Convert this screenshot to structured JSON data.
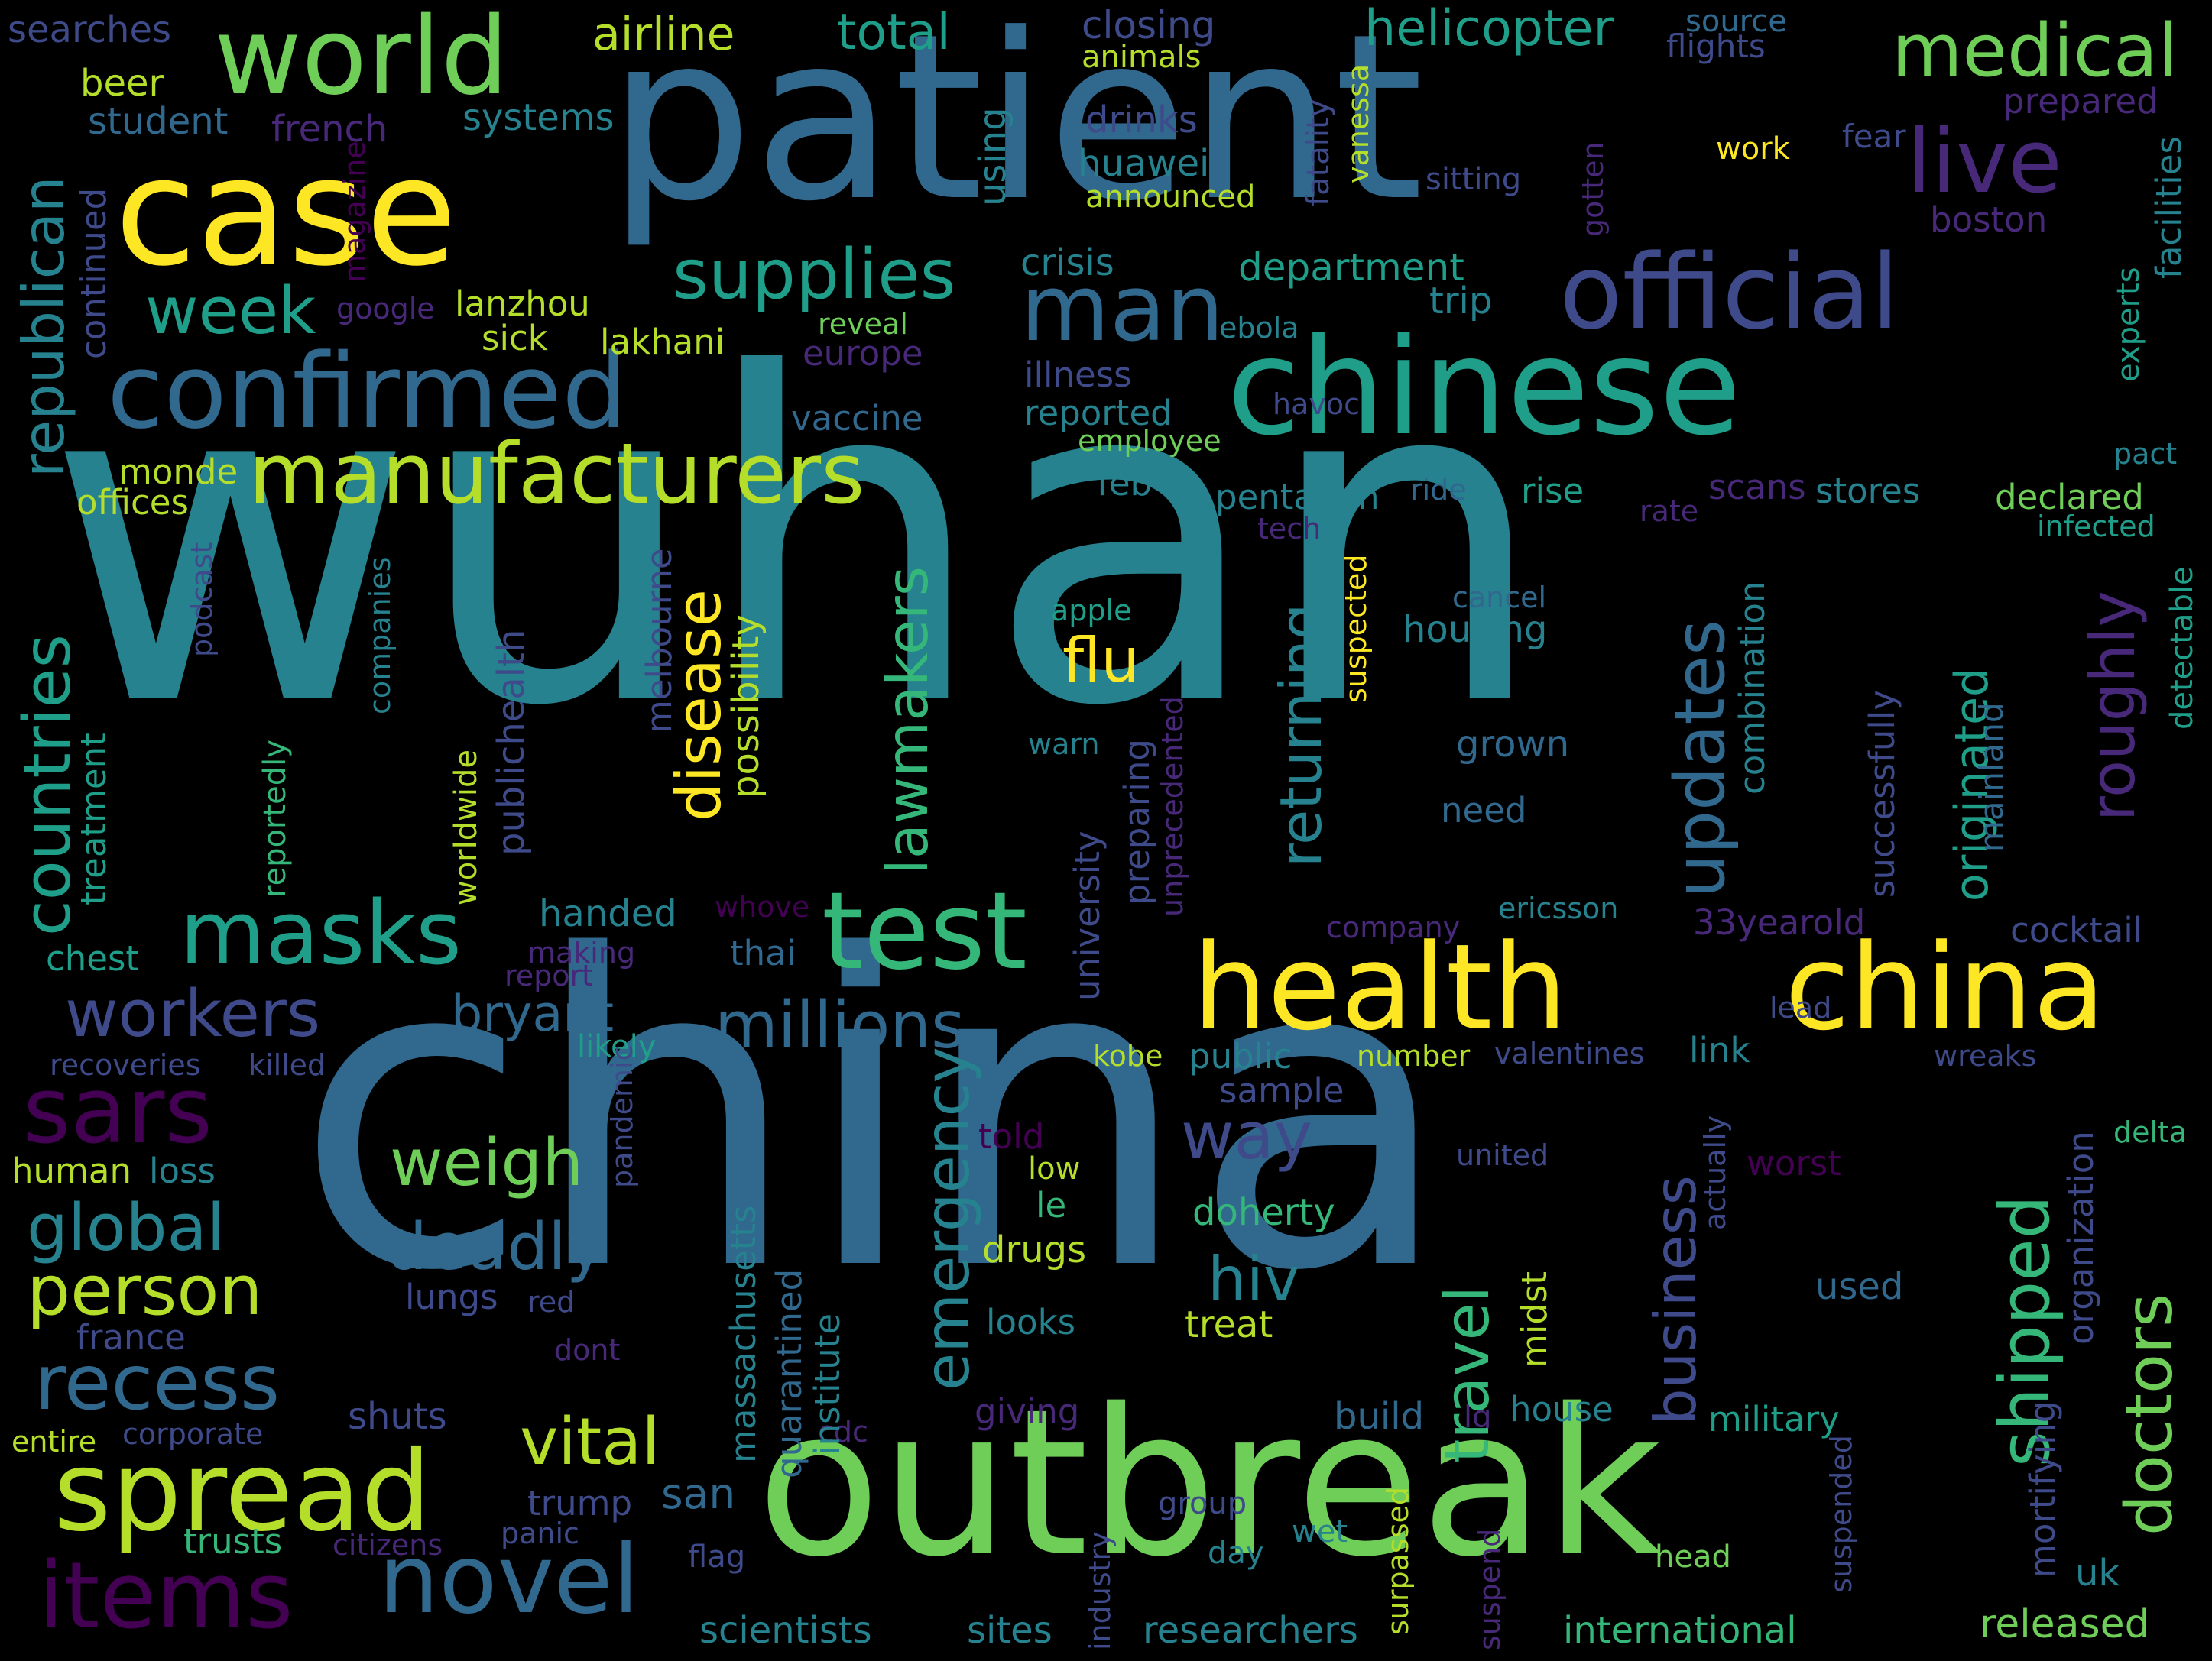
{
  "palette": {
    "background": "#000000",
    "viridis": [
      "#440154",
      "#482878",
      "#3e4a89",
      "#31688e",
      "#26828e",
      "#1f9e89",
      "#35b779",
      "#6ece58",
      "#b5de2b",
      "#fde725"
    ]
  },
  "words": [
    {
      "text": "wuhan",
      "color": "#26828e"
    },
    {
      "text": "china",
      "color": "#31688e"
    },
    {
      "text": "patient",
      "color": "#31688e"
    },
    {
      "text": "outbreak",
      "color": "#6ece58"
    },
    {
      "text": "chinese",
      "color": "#1f9e89"
    },
    {
      "text": "case",
      "color": "#fde725"
    },
    {
      "text": "health",
      "color": "#fde725"
    },
    {
      "text": "china",
      "color": "#fde725"
    },
    {
      "text": "official",
      "color": "#3e4a89"
    },
    {
      "text": "confirmed",
      "color": "#31688e"
    },
    {
      "text": "world",
      "color": "#6ece58"
    },
    {
      "text": "medical",
      "color": "#6ece58"
    },
    {
      "text": "manufacturers",
      "color": "#b5de2b"
    },
    {
      "text": "masks",
      "color": "#1f9e89"
    },
    {
      "text": "test",
      "color": "#35b779"
    },
    {
      "text": "spread",
      "color": "#b5de2b"
    },
    {
      "text": "novel",
      "color": "#31688e"
    },
    {
      "text": "sars",
      "color": "#440154"
    },
    {
      "text": "items",
      "color": "#440154"
    },
    {
      "text": "man",
      "color": "#31688e"
    },
    {
      "text": "live",
      "color": "#482878"
    },
    {
      "text": "supplies",
      "color": "#1f9e89"
    },
    {
      "text": "week",
      "color": "#1f9e89"
    },
    {
      "text": "workers",
      "color": "#3e4a89"
    },
    {
      "text": "millions",
      "color": "#31688e"
    },
    {
      "text": "recess",
      "color": "#31688e"
    },
    {
      "text": "person",
      "color": "#b5de2b"
    },
    {
      "text": "global",
      "color": "#26828e"
    },
    {
      "text": "deadly",
      "color": "#31688e"
    },
    {
      "text": "weigh",
      "color": "#6ece58"
    },
    {
      "text": "vital",
      "color": "#b5de2b"
    },
    {
      "text": "way",
      "color": "#3e4a89"
    },
    {
      "text": "hiv",
      "color": "#26828e"
    },
    {
      "text": "flu",
      "color": "#fde725"
    },
    {
      "text": "bryant",
      "color": "#31688e"
    },
    {
      "text": "airline",
      "color": "#b5de2b"
    },
    {
      "text": "total",
      "color": "#1f9e89"
    },
    {
      "text": "helicopter",
      "color": "#1f9e89"
    },
    {
      "text": "closing",
      "color": "#3e4a89"
    },
    {
      "text": "animals",
      "color": "#b5de2b"
    },
    {
      "text": "source",
      "color": "#31688e"
    },
    {
      "text": "flights",
      "color": "#3e4a89"
    },
    {
      "text": "searches",
      "color": "#3e4a89"
    },
    {
      "text": "beer",
      "color": "#b5de2b"
    },
    {
      "text": "student",
      "color": "#31688e"
    },
    {
      "text": "systems",
      "color": "#26828e"
    },
    {
      "text": "french",
      "color": "#482878"
    },
    {
      "text": "drinks",
      "color": "#3e4a89"
    },
    {
      "text": "huawei",
      "color": "#26828e"
    },
    {
      "text": "announced",
      "color": "#b5de2b"
    },
    {
      "text": "prepared",
      "color": "#482878"
    },
    {
      "text": "fear",
      "color": "#3e4a89"
    },
    {
      "text": "work",
      "color": "#fde725"
    },
    {
      "text": "sitting",
      "color": "#3e4a89"
    },
    {
      "text": "boston",
      "color": "#482878"
    },
    {
      "text": "crisis",
      "color": "#26828e"
    },
    {
      "text": "department",
      "color": "#1f9e89"
    },
    {
      "text": "trip",
      "color": "#26828e"
    },
    {
      "text": "lanzhou",
      "color": "#b5de2b"
    },
    {
      "text": "google",
      "color": "#482878"
    },
    {
      "text": "sick",
      "color": "#b5de2b"
    },
    {
      "text": "lakhani",
      "color": "#b5de2b"
    },
    {
      "text": "reveal",
      "color": "#6ece58"
    },
    {
      "text": "europe",
      "color": "#482878"
    },
    {
      "text": "ebola",
      "color": "#26828e"
    },
    {
      "text": "illness",
      "color": "#3e4a89"
    },
    {
      "text": "havoc",
      "color": "#3e4a89"
    },
    {
      "text": "vaccine",
      "color": "#31688e"
    },
    {
      "text": "reported",
      "color": "#26828e"
    },
    {
      "text": "employee",
      "color": "#6ece58"
    },
    {
      "text": "pact",
      "color": "#26828e"
    },
    {
      "text": "monde",
      "color": "#b5de2b"
    },
    {
      "text": "offices",
      "color": "#b5de2b"
    },
    {
      "text": "feb",
      "color": "#26828e"
    },
    {
      "text": "pentagon",
      "color": "#26828e"
    },
    {
      "text": "ride",
      "color": "#31688e"
    },
    {
      "text": "rise",
      "color": "#1f9e89"
    },
    {
      "text": "rate",
      "color": "#482878"
    },
    {
      "text": "scans",
      "color": "#482878"
    },
    {
      "text": "stores",
      "color": "#26828e"
    },
    {
      "text": "declared",
      "color": "#6ece58"
    },
    {
      "text": "infected",
      "color": "#1f9e89"
    },
    {
      "text": "tech",
      "color": "#482878"
    },
    {
      "text": "cancel",
      "color": "#31688e"
    },
    {
      "text": "apple",
      "color": "#1f9e89"
    },
    {
      "text": "housing",
      "color": "#26828e"
    },
    {
      "text": "grown",
      "color": "#31688e"
    },
    {
      "text": "need",
      "color": "#31688e"
    },
    {
      "text": "warn",
      "color": "#26828e"
    },
    {
      "text": "handed",
      "color": "#26828e"
    },
    {
      "text": "chest",
      "color": "#1f9e89"
    },
    {
      "text": "thai",
      "color": "#31688e"
    },
    {
      "text": "report",
      "color": "#482878"
    },
    {
      "text": "making",
      "color": "#482878"
    },
    {
      "text": "whove",
      "color": "#440154"
    },
    {
      "text": "likely",
      "color": "#1f9e89"
    },
    {
      "text": "recoveries",
      "color": "#3e4a89"
    },
    {
      "text": "killed",
      "color": "#3e4a89"
    },
    {
      "text": "human",
      "color": "#b5de2b"
    },
    {
      "text": "loss",
      "color": "#26828e"
    },
    {
      "text": "company",
      "color": "#482878"
    },
    {
      "text": "ericsson",
      "color": "#26828e"
    },
    {
      "text": "33yearold",
      "color": "#482878"
    },
    {
      "text": "cocktail",
      "color": "#3e4a89"
    },
    {
      "text": "lead",
      "color": "#3e4a89"
    },
    {
      "text": "kobe",
      "color": "#b5de2b"
    },
    {
      "text": "public",
      "color": "#26828e"
    },
    {
      "text": "number",
      "color": "#b5de2b"
    },
    {
      "text": "valentines",
      "color": "#3e4a89"
    },
    {
      "text": "link",
      "color": "#26828e"
    },
    {
      "text": "wreaks",
      "color": "#3e4a89"
    },
    {
      "text": "sample",
      "color": "#3e4a89"
    },
    {
      "text": "told",
      "color": "#440154"
    },
    {
      "text": "low",
      "color": "#b5de2b"
    },
    {
      "text": "le",
      "color": "#35b779"
    },
    {
      "text": "united",
      "color": "#3e4a89"
    },
    {
      "text": "worst",
      "color": "#440154"
    },
    {
      "text": "delta",
      "color": "#35b779"
    },
    {
      "text": "doherty",
      "color": "#35b779"
    },
    {
      "text": "drugs",
      "color": "#b5de2b"
    },
    {
      "text": "lungs",
      "color": "#3e4a89"
    },
    {
      "text": "red",
      "color": "#3e4a89"
    },
    {
      "text": "france",
      "color": "#3e4a89"
    },
    {
      "text": "looks",
      "color": "#26828e"
    },
    {
      "text": "treat",
      "color": "#b5de2b"
    },
    {
      "text": "used",
      "color": "#31688e"
    },
    {
      "text": "dont",
      "color": "#482878"
    },
    {
      "text": "giving",
      "color": "#482878"
    },
    {
      "text": "shuts",
      "color": "#3e4a89"
    },
    {
      "text": "build",
      "color": "#31688e"
    },
    {
      "text": "lg",
      "color": "#482878"
    },
    {
      "text": "house",
      "color": "#26828e"
    },
    {
      "text": "military",
      "color": "#1f9e89"
    },
    {
      "text": "entire",
      "color": "#b5de2b"
    },
    {
      "text": "corporate",
      "color": "#3e4a89"
    },
    {
      "text": "cdc",
      "color": "#482878"
    },
    {
      "text": "trump",
      "color": "#3e4a89"
    },
    {
      "text": "san",
      "color": "#31688e"
    },
    {
      "text": "group",
      "color": "#3e4a89"
    },
    {
      "text": "wet",
      "color": "#26828e"
    },
    {
      "text": "panic",
      "color": "#3e4a89"
    },
    {
      "text": "trusts",
      "color": "#35b779"
    },
    {
      "text": "citizens",
      "color": "#482878"
    },
    {
      "text": "flag",
      "color": "#3e4a89"
    },
    {
      "text": "day",
      "color": "#26828e"
    },
    {
      "text": "head",
      "color": "#6ece58"
    },
    {
      "text": "uk",
      "color": "#26828e"
    },
    {
      "text": "scientists",
      "color": "#26828e"
    },
    {
      "text": "sites",
      "color": "#26828e"
    },
    {
      "text": "researchers",
      "color": "#26828e"
    },
    {
      "text": "international",
      "color": "#35b779"
    },
    {
      "text": "released",
      "color": "#6ece58"
    },
    {
      "text": "republican",
      "color": "#26828e"
    },
    {
      "text": "continued",
      "color": "#3e4a89"
    },
    {
      "text": "countries",
      "color": "#1f9e89"
    },
    {
      "text": "treatment",
      "color": "#1f9e89"
    },
    {
      "text": "podcast",
      "color": "#3e4a89"
    },
    {
      "text": "companies",
      "color": "#26828e"
    },
    {
      "text": "reportedly",
      "color": "#35b779"
    },
    {
      "text": "worldwide",
      "color": "#b5de2b"
    },
    {
      "text": "publichealth",
      "color": "#3e4a89"
    },
    {
      "text": "melbourne",
      "color": "#3e4a89"
    },
    {
      "text": "possibility",
      "color": "#b5de2b"
    },
    {
      "text": "disease",
      "color": "#fde725"
    },
    {
      "text": "lawmakers",
      "color": "#35b779"
    },
    {
      "text": "emergency",
      "color": "#26828e"
    },
    {
      "text": "returning",
      "color": "#26828e"
    },
    {
      "text": "updates",
      "color": "#31688e"
    },
    {
      "text": "business",
      "color": "#3e4a89"
    },
    {
      "text": "travel",
      "color": "#35b779"
    },
    {
      "text": "combination",
      "color": "#26828e"
    },
    {
      "text": "roughly",
      "color": "#482878"
    },
    {
      "text": "originated",
      "color": "#1f9e89"
    },
    {
      "text": "successfully",
      "color": "#3e4a89"
    },
    {
      "text": "mainland",
      "color": "#31688e"
    },
    {
      "text": "shipped",
      "color": "#35b779"
    },
    {
      "text": "doctors",
      "color": "#6ece58"
    },
    {
      "text": "massachusetts",
      "color": "#26828e"
    },
    {
      "text": "quarantined",
      "color": "#31688e"
    },
    {
      "text": "institute",
      "color": "#26828e"
    },
    {
      "text": "midst",
      "color": "#b5de2b"
    },
    {
      "text": "suspend",
      "color": "#482878"
    },
    {
      "text": "industry",
      "color": "#3e4a89"
    },
    {
      "text": "surpassed",
      "color": "#b5de2b"
    },
    {
      "text": "suspected",
      "color": "#fde725"
    },
    {
      "text": "unprecedented",
      "color": "#482878"
    },
    {
      "text": "preparing",
      "color": "#3e4a89"
    },
    {
      "text": "university",
      "color": "#3e4a89"
    },
    {
      "text": "mortifying",
      "color": "#3e4a89"
    },
    {
      "text": "organization",
      "color": "#3e4a89"
    },
    {
      "text": "suspended",
      "color": "#3e4a89"
    },
    {
      "text": "actually",
      "color": "#3e4a89"
    },
    {
      "text": "pandemic",
      "color": "#3e4a89"
    },
    {
      "text": "facilities",
      "color": "#26828e"
    },
    {
      "text": "experts",
      "color": "#1f9e89"
    },
    {
      "text": "detectable",
      "color": "#1f9e89"
    },
    {
      "text": "fatality",
      "color": "#3e4a89"
    },
    {
      "text": "vanessa",
      "color": "#b5de2b"
    },
    {
      "text": "gotten",
      "color": "#482878"
    },
    {
      "text": "magazine",
      "color": "#440154"
    },
    {
      "text": "using",
      "color": "#26828e"
    }
  ]
}
